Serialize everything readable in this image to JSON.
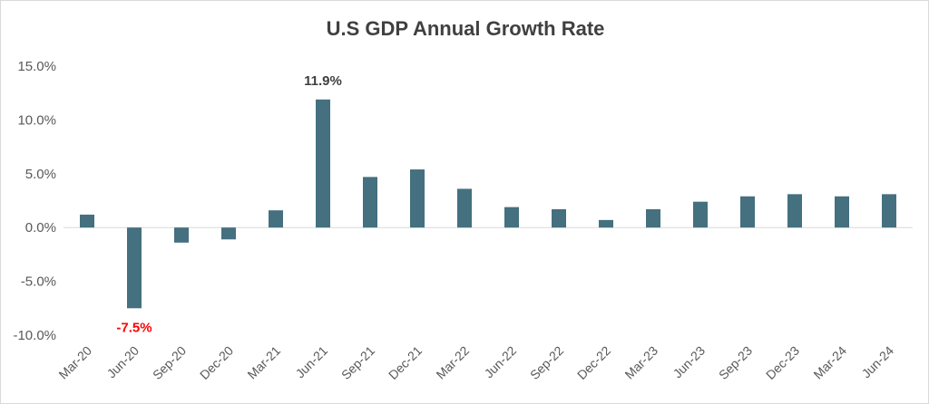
{
  "chart_data": {
    "type": "bar",
    "title": "U.S GDP Annual Growth Rate",
    "xlabel": "",
    "ylabel": "",
    "categories": [
      "Mar-20",
      "Jun-20",
      "Sep-20",
      "Dec-20",
      "Mar-21",
      "Jun-21",
      "Sep-21",
      "Dec-21",
      "Mar-22",
      "Jun-22",
      "Sep-22",
      "Dec-22",
      "Mar-23",
      "Jun-23",
      "Sep-23",
      "Dec-23",
      "Mar-24",
      "Jun-24"
    ],
    "values": [
      1.2,
      -7.5,
      -1.4,
      -1.1,
      1.6,
      11.9,
      4.7,
      5.4,
      3.6,
      1.9,
      1.7,
      0.7,
      1.7,
      2.4,
      2.9,
      3.1,
      2.9,
      3.1
    ],
    "ylim": [
      -10,
      15
    ],
    "yticks": [
      "15.0%",
      "10.0%",
      "5.0%",
      "0.0%",
      "-5.0%",
      "-10.0%"
    ],
    "ytick_values": [
      15,
      10,
      5,
      0,
      -5,
      -10
    ],
    "data_labels": [
      {
        "category": "Jun-20",
        "text": "-7.5%",
        "color": "#ff0000"
      },
      {
        "category": "Jun-21",
        "text": "11.9%",
        "color": "#404040"
      }
    ],
    "bar_color": "#44707f",
    "grid": false,
    "legend": "none"
  }
}
